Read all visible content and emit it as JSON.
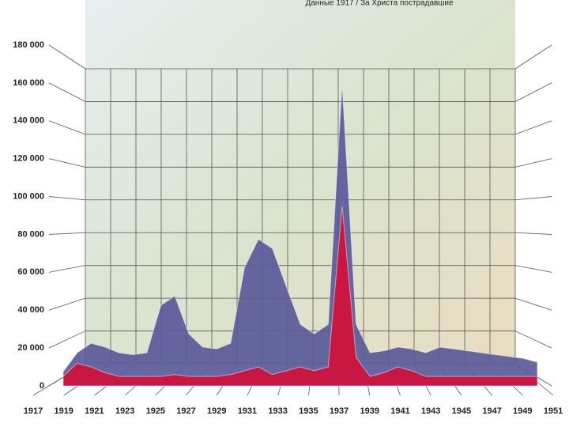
{
  "chart_data": {
    "type": "area",
    "title": "Данные 1917 / За Христа пострадавшие",
    "x": [
      1917,
      1918,
      1919,
      1920,
      1921,
      1922,
      1923,
      1924,
      1925,
      1926,
      1927,
      1928,
      1929,
      1930,
      1931,
      1932,
      1933,
      1934,
      1935,
      1936,
      1937,
      1938,
      1939,
      1940,
      1941,
      1942,
      1943,
      1944,
      1945,
      1946,
      1947,
      1948,
      1949,
      1950,
      1951
    ],
    "series": [
      {
        "color": "#5a5a9a",
        "values": [
          5000,
          15000,
          20000,
          18000,
          15000,
          14000,
          15000,
          40000,
          45000,
          25000,
          18000,
          17000,
          20000,
          60000,
          75000,
          70000,
          50000,
          30000,
          25000,
          30000,
          157000,
          30000,
          15000,
          16000,
          18000,
          17000,
          15000,
          18000,
          17000,
          16000,
          15000,
          14000,
          13000,
          12000,
          10000
        ]
      },
      {
        "color": "#d0103a",
        "values": [
          5000,
          12000,
          10000,
          7000,
          5000,
          5000,
          5000,
          5000,
          6000,
          5000,
          5000,
          5000,
          6000,
          8000,
          10000,
          6000,
          8000,
          10000,
          8000,
          10000,
          95000,
          15000,
          5000,
          7000,
          10000,
          8000,
          5000,
          5000,
          5000,
          5000,
          5000,
          5000,
          5000,
          5000,
          5000
        ]
      }
    ],
    "xlim": [
      1917,
      1951
    ],
    "xticks": [
      1917,
      1919,
      1921,
      1923,
      1925,
      1927,
      1929,
      1931,
      1933,
      1935,
      1937,
      1939,
      1941,
      1943,
      1945,
      1947,
      1949,
      1951
    ],
    "ylim": [
      0,
      180000
    ],
    "yticks": [
      0,
      {
        "value": 20000,
        "label": "20 000"
      },
      {
        "value": 40000,
        "label": "40 000"
      },
      {
        "value": 60000,
        "label": "60 000"
      },
      {
        "value": 80000,
        "label": "80 000"
      },
      {
        "value": 100000,
        "label": "100 000"
      },
      {
        "value": 120000,
        "label": "120 000"
      },
      {
        "value": 140000,
        "label": "140 000"
      },
      {
        "value": 160000,
        "label": "160 000"
      },
      {
        "value": 180000,
        "label": "180 000"
      }
    ],
    "grid": true
  }
}
